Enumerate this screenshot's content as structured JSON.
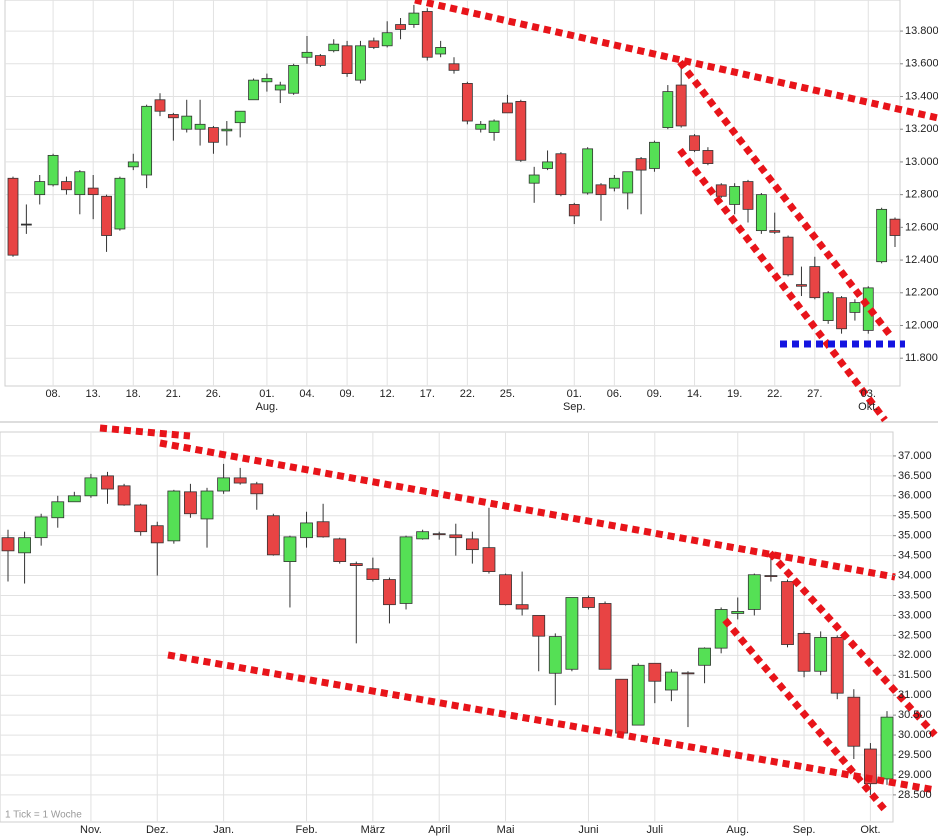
{
  "chart_data": [
    {
      "type": "candlestick",
      "categories": [
        null,
        null,
        null,
        "08.",
        null,
        null,
        "13.",
        null,
        null,
        "18.",
        null,
        null,
        "21.",
        null,
        null,
        "26.",
        null,
        null,
        null,
        "01.",
        null,
        null,
        "04.",
        null,
        null,
        "09.",
        null,
        null,
        "12.",
        null,
        null,
        "17.",
        null,
        null,
        "22.",
        null,
        null,
        "25.",
        null,
        null,
        null,
        null,
        "01.",
        null,
        null,
        "06.",
        null,
        null,
        "09.",
        null,
        null,
        "14.",
        null,
        null,
        "19.",
        null,
        null,
        "22.",
        null,
        null,
        "27.",
        null,
        null,
        null,
        "03.",
        null,
        null
      ],
      "months": [
        null,
        null,
        null,
        null,
        null,
        null,
        null,
        null,
        null,
        null,
        null,
        null,
        null,
        null,
        null,
        null,
        null,
        null,
        null,
        "Aug.",
        null,
        null,
        null,
        null,
        null,
        null,
        null,
        null,
        null,
        null,
        null,
        null,
        null,
        null,
        null,
        null,
        null,
        null,
        null,
        null,
        null,
        null,
        "Sep.",
        null,
        null,
        null,
        null,
        null,
        null,
        null,
        null,
        null,
        null,
        null,
        null,
        null,
        null,
        null,
        null,
        null,
        null,
        null,
        null,
        null,
        "Okt.",
        null,
        null
      ],
      "open": [
        12900,
        12620,
        12800,
        12860,
        12880,
        12800,
        12840,
        12790,
        12590,
        12970,
        12920,
        13380,
        13290,
        13200,
        13200,
        13210,
        13190,
        13240,
        13380,
        13490,
        13440,
        13420,
        13640,
        13650,
        13680,
        13710,
        13500,
        13740,
        13710,
        13840,
        13840,
        13920,
        13660,
        13600,
        13480,
        13200,
        13180,
        13360,
        13370,
        12870,
        12960,
        13050,
        12740,
        12810,
        12860,
        12840,
        12810,
        13020,
        12960,
        13210,
        13470,
        13160,
        13070,
        12860,
        12740,
        12880,
        12580,
        12580,
        12540,
        12250,
        12360,
        12030,
        12170,
        12080,
        11970,
        12390,
        12650
      ],
      "high": [
        12910,
        12740,
        12920,
        13050,
        12910,
        12950,
        12920,
        12800,
        12910,
        13050,
        13350,
        13420,
        13300,
        13380,
        13380,
        13220,
        13250,
        13310,
        13510,
        13540,
        13490,
        13600,
        13770,
        13660,
        13750,
        13740,
        13740,
        13760,
        13860,
        13880,
        13960,
        13940,
        13740,
        13640,
        13490,
        13250,
        13260,
        13410,
        13380,
        12970,
        13070,
        13060,
        12750,
        13090,
        12870,
        12920,
        12940,
        13030,
        13130,
        13470,
        13600,
        13170,
        13090,
        12870,
        12870,
        12890,
        12810,
        12690,
        12550,
        12360,
        12420,
        12210,
        12180,
        12160,
        12240,
        12720,
        12660
      ],
      "low": [
        12420,
        12560,
        12740,
        12850,
        12800,
        12680,
        12650,
        12450,
        12580,
        12950,
        12840,
        13280,
        13130,
        13180,
        13100,
        13050,
        13100,
        13150,
        13380,
        13430,
        13360,
        13410,
        13600,
        13580,
        13670,
        13520,
        13480,
        13690,
        13700,
        13750,
        13820,
        13620,
        13640,
        13540,
        13230,
        13180,
        13130,
        13300,
        13000,
        12750,
        12950,
        12790,
        12620,
        12800,
        12640,
        12820,
        12710,
        12680,
        12940,
        13200,
        13210,
        13060,
        12980,
        12780,
        12680,
        12630,
        12560,
        12560,
        12300,
        12180,
        12160,
        12010,
        11950,
        12030,
        11950,
        12380,
        12480
      ],
      "close": [
        12430,
        12620,
        12880,
        13040,
        12830,
        12940,
        12800,
        12550,
        12900,
        13000,
        13340,
        13310,
        13270,
        13280,
        13230,
        13120,
        13200,
        13310,
        13500,
        13510,
        13470,
        13590,
        13670,
        13590,
        13720,
        13540,
        13710,
        13700,
        13790,
        13810,
        13910,
        13640,
        13700,
        13560,
        13250,
        13230,
        13250,
        13300,
        13010,
        12920,
        13000,
        12800,
        12670,
        13080,
        12800,
        12900,
        12940,
        12950,
        13120,
        13430,
        13220,
        13070,
        12990,
        12790,
        12850,
        12710,
        12800,
        12570,
        12310,
        12240,
        12170,
        12200,
        11980,
        12140,
        12230,
        12710,
        12550
      ],
      "up_color": "#55e055",
      "down_color": "#e84444",
      "doji_color": "#222222",
      "ylim": [
        11630,
        13990
      ],
      "yticks": [
        {
          "value": 11800,
          "label": "11.800"
        },
        {
          "value": 12000,
          "label": "12.000"
        },
        {
          "value": 12200,
          "label": "12.200"
        },
        {
          "value": 12400,
          "label": "12.400"
        },
        {
          "value": 12600,
          "label": "12.600"
        },
        {
          "value": 12800,
          "label": "12.800"
        },
        {
          "value": 13000,
          "label": "13.000"
        },
        {
          "value": 13200,
          "label": "13.200"
        },
        {
          "value": 13400,
          "label": "13.400"
        },
        {
          "value": 13600,
          "label": "13.600"
        },
        {
          "value": 13800,
          "label": "13.800"
        }
      ],
      "grid": true
    },
    {
      "type": "candlestick",
      "categories": [
        null,
        null,
        null,
        null,
        null,
        "Nov.",
        null,
        null,
        null,
        "Dez.",
        null,
        null,
        null,
        "Jan.",
        null,
        null,
        null,
        null,
        "Feb.",
        null,
        null,
        null,
        "März",
        null,
        null,
        null,
        "April",
        null,
        null,
        null,
        "Mai",
        null,
        null,
        null,
        null,
        "Juni",
        null,
        null,
        null,
        "Juli",
        null,
        null,
        null,
        null,
        "Aug.",
        null,
        null,
        null,
        "Sep.",
        null,
        null,
        null,
        "Okt.",
        null
      ],
      "open": [
        34950,
        34570,
        34950,
        35450,
        35850,
        36000,
        36500,
        36250,
        35770,
        35250,
        34870,
        36100,
        35420,
        36120,
        36450,
        36300,
        35500,
        34350,
        34950,
        35350,
        34920,
        34300,
        34170,
        33900,
        33300,
        34920,
        35050,
        35020,
        34920,
        34700,
        34020,
        33270,
        33000,
        31550,
        31650,
        33450,
        33300,
        31400,
        30250,
        31800,
        31130,
        31560,
        31750,
        32180,
        33050,
        33150,
        34000,
        33850,
        32550,
        31600,
        32450,
        30950,
        29650,
        28900
      ],
      "high": [
        35150,
        35100,
        35550,
        36000,
        36100,
        36550,
        36600,
        36300,
        35800,
        35350,
        36150,
        36300,
        36200,
        36800,
        36700,
        36350,
        35550,
        35000,
        35600,
        35800,
        34950,
        34350,
        34450,
        33950,
        35000,
        35150,
        35100,
        35300,
        35100,
        35700,
        34050,
        34100,
        33000,
        32550,
        33450,
        33500,
        33350,
        31400,
        31800,
        31800,
        31650,
        31600,
        32200,
        33200,
        33450,
        34050,
        34500,
        33900,
        32600,
        32600,
        32500,
        31150,
        29800,
        30600
      ],
      "low": [
        33850,
        33800,
        34750,
        35200,
        35850,
        35950,
        35800,
        35750,
        35000,
        34000,
        34800,
        35450,
        34700,
        36050,
        36280,
        35650,
        34500,
        33200,
        34700,
        34950,
        34300,
        32300,
        33850,
        32800,
        33150,
        34900,
        34900,
        34500,
        34300,
        34050,
        33250,
        33000,
        31600,
        30750,
        31600,
        33150,
        31650,
        29950,
        30250,
        30800,
        30850,
        30200,
        31300,
        32050,
        32900,
        33000,
        33850,
        32200,
        31450,
        31500,
        30900,
        29400,
        28500,
        28750
      ],
      "close": [
        34620,
        34950,
        35470,
        35850,
        36000,
        36450,
        36170,
        35770,
        35100,
        34820,
        36120,
        35550,
        36120,
        36450,
        36320,
        36050,
        34520,
        34970,
        35320,
        34970,
        34350,
        34250,
        33900,
        33270,
        34970,
        35100,
        35030,
        34950,
        34650,
        34100,
        33270,
        33160,
        32480,
        32470,
        33450,
        33200,
        31650,
        30050,
        31750,
        31350,
        31580,
        31550,
        32180,
        33150,
        33100,
        34020,
        33980,
        32270,
        31600,
        32450,
        31050,
        29720,
        28780,
        30450
      ],
      "up_color": "#55e055",
      "down_color": "#e84444",
      "doji_color": "#222222",
      "ylim": [
        27820,
        37600
      ],
      "yticks": [
        {
          "value": 28500,
          "label": "28.500"
        },
        {
          "value": 29000,
          "label": "29.000"
        },
        {
          "value": 29500,
          "label": "29.500"
        },
        {
          "value": 30000,
          "label": "30.000"
        },
        {
          "value": 30500,
          "label": "30.500"
        },
        {
          "value": 31000,
          "label": "31.000"
        },
        {
          "value": 31500,
          "label": "31.500"
        },
        {
          "value": 32000,
          "label": "32.000"
        },
        {
          "value": 32500,
          "label": "32.500"
        },
        {
          "value": 33000,
          "label": "33.000"
        },
        {
          "value": 33500,
          "label": "33.500"
        },
        {
          "value": 34000,
          "label": "34.000"
        },
        {
          "value": 34500,
          "label": "34.500"
        },
        {
          "value": 35000,
          "label": "35.000"
        },
        {
          "value": 35500,
          "label": "35.500"
        },
        {
          "value": 36000,
          "label": "36.000"
        },
        {
          "value": 36500,
          "label": "36.500"
        },
        {
          "value": 37000,
          "label": "37.000"
        }
      ],
      "grid": true,
      "annotation": "1 Tick = 1 Woche"
    }
  ]
}
